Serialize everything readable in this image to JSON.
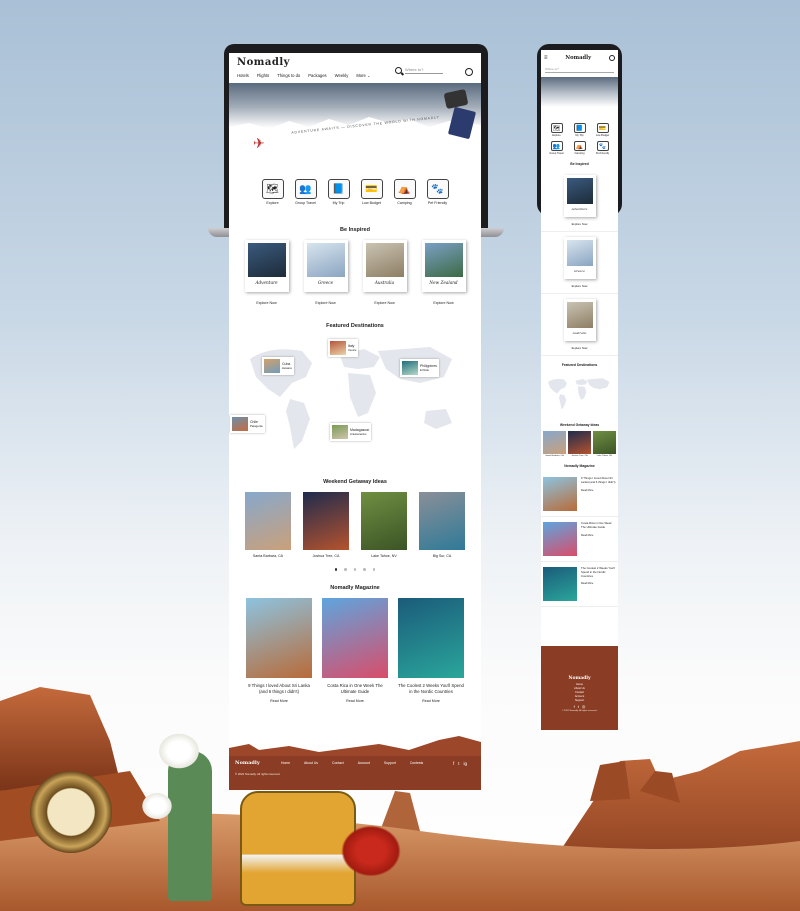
{
  "brand": {
    "logo": "Nomadly",
    "accent": "#8b3c24"
  },
  "desktop": {
    "nav": [
      "Hotels",
      "Flights",
      "Things to do",
      "Packages",
      "Weekly",
      "More"
    ],
    "search": {
      "placeholder": "Where to?"
    },
    "hero_text": "ADVENTURE AWAITS — DISCOVER THE WORLD WITH NOMADLY",
    "categories": [
      {
        "label": "Explore",
        "icon": "map-icon"
      },
      {
        "label": "Group Travel",
        "icon": "group-icon"
      },
      {
        "label": "My Trip",
        "icon": "passport-icon"
      },
      {
        "label": "Low Budget",
        "icon": "wallet-icon"
      },
      {
        "label": "Camping",
        "icon": "tent-icon"
      },
      {
        "label": "Pet Friendly",
        "icon": "paw-icon"
      }
    ],
    "inspired": {
      "title": "Be Inspired",
      "cards": [
        {
          "caption": "Adventure",
          "link": "Explore Now",
          "colors": [
            "#3a5a7e",
            "#1d2b38"
          ]
        },
        {
          "caption": "Greece",
          "link": "Explore Now",
          "colors": [
            "#d8e4ee",
            "#8aa5c2"
          ]
        },
        {
          "caption": "Australia",
          "link": "Explore Now",
          "colors": [
            "#c9c3b3",
            "#8e7e64"
          ]
        },
        {
          "caption": "New Zealand",
          "link": "Explore Now",
          "colors": [
            "#7aa0c4",
            "#3d6a45"
          ]
        }
      ]
    },
    "featured": {
      "title": "Featured Destinations",
      "pins": [
        {
          "name": "Cuba",
          "sub": "Havana",
          "colors": [
            "#d4a06a",
            "#6e9dbd"
          ]
        },
        {
          "name": "Italy",
          "sub": "Venice",
          "colors": [
            "#b7563b",
            "#ead4a9"
          ]
        },
        {
          "name": "Philippines",
          "sub": "El Nido",
          "colors": [
            "#1f6f7b",
            "#b6d9c8"
          ]
        },
        {
          "name": "Chile",
          "sub": "Patagonia",
          "colors": [
            "#6b8faa",
            "#c66b40"
          ]
        },
        {
          "name": "Madagascar",
          "sub": "Antananarivo",
          "colors": [
            "#7a9a57",
            "#cfc5a9"
          ]
        }
      ]
    },
    "weekend": {
      "title": "Weekend Getaway Ideas",
      "items": [
        {
          "caption": "Santa Barbara, CA",
          "colors": [
            "#87a8cc",
            "#caa07a"
          ]
        },
        {
          "caption": "Joshua Tree, CA",
          "colors": [
            "#1f2b4d",
            "#b5532e"
          ]
        },
        {
          "caption": "Lake Tahoe, NV",
          "colors": [
            "#6f8f42",
            "#3c5426"
          ]
        },
        {
          "caption": "Big Sur, CA",
          "colors": [
            "#8a8f98",
            "#2f7a98"
          ]
        }
      ]
    },
    "magazine": {
      "title": "Nomadly Magazine",
      "articles": [
        {
          "title": "9 Things I loved About Sri Lanka (and 6 things I didn't)",
          "link": "Read More",
          "colors": [
            "#8dc3e0",
            "#b86b38"
          ]
        },
        {
          "title": "Costa Rica in One Week The Ultimate Guide",
          "link": "Read More",
          "colors": [
            "#5ea5de",
            "#d94d6a"
          ]
        },
        {
          "title": "The Coolest 2 Weeks You'll Spend in the Nordic Countries",
          "link": "Read More",
          "colors": [
            "#1b5b7a",
            "#2aa69b"
          ]
        }
      ]
    },
    "footer": {
      "logo": "Nomadly",
      "links": [
        "Home",
        "About Us",
        "Contact",
        "Account",
        "Support",
        "Contests"
      ],
      "copyright": "© 2022 Nomadly. All rights reserved.",
      "social": [
        "f",
        "t",
        "ig"
      ]
    }
  },
  "mobile": {
    "logo": "Nomadly",
    "search": {
      "placeholder": "Where to?"
    },
    "categories": [
      "Explore",
      "My Trip",
      "Low Budget",
      "Group Travel",
      "Camping",
      "Pet Friendly"
    ],
    "inspired": {
      "title": "Be Inspired",
      "cards": [
        {
          "caption": "Adventure",
          "link": "Explore Now",
          "colors": [
            "#3a5a7e",
            "#1d2b38"
          ]
        },
        {
          "caption": "Greece",
          "link": "Explore Now",
          "colors": [
            "#d8e4ee",
            "#8aa5c2"
          ]
        },
        {
          "caption": "Australia",
          "link": "Explore Now",
          "colors": [
            "#c9c3b3",
            "#8e7e64"
          ]
        }
      ]
    },
    "featured_title": "Featured Destinations",
    "weekend": {
      "title": "Weekend Getaway Ideas",
      "items": [
        {
          "caption": "Santa Barbara, CA",
          "colors": [
            "#87a8cc",
            "#caa07a"
          ]
        },
        {
          "caption": "Joshua Tree, CA",
          "colors": [
            "#1f2b4d",
            "#b5532e"
          ]
        },
        {
          "caption": "Lake Tahoe, NV",
          "colors": [
            "#6f8f42",
            "#3c5426"
          ]
        }
      ]
    },
    "magazine": {
      "title": "Nomadly Magazine",
      "articles": [
        {
          "title": "9 Things I loved About Sri Lanka (and 6 things I didn't)",
          "link": "Read More",
          "colors": [
            "#8dc3e0",
            "#b86b38"
          ]
        },
        {
          "title": "Costa Rica in One Week The Ultimate Guide",
          "link": "Read More",
          "colors": [
            "#5ea5de",
            "#d94d6a"
          ]
        },
        {
          "title": "The Coolest 2 Weeks You'll Spend in the Nordic Countries",
          "link": "Read More",
          "colors": [
            "#1b5b7a",
            "#2aa69b"
          ]
        }
      ]
    },
    "footer": {
      "logo": "Nomadly",
      "links": [
        "Home",
        "About Us",
        "Contact",
        "Account",
        "Support"
      ],
      "copyright": "© 2022 Nomadly. All rights reserved."
    }
  }
}
